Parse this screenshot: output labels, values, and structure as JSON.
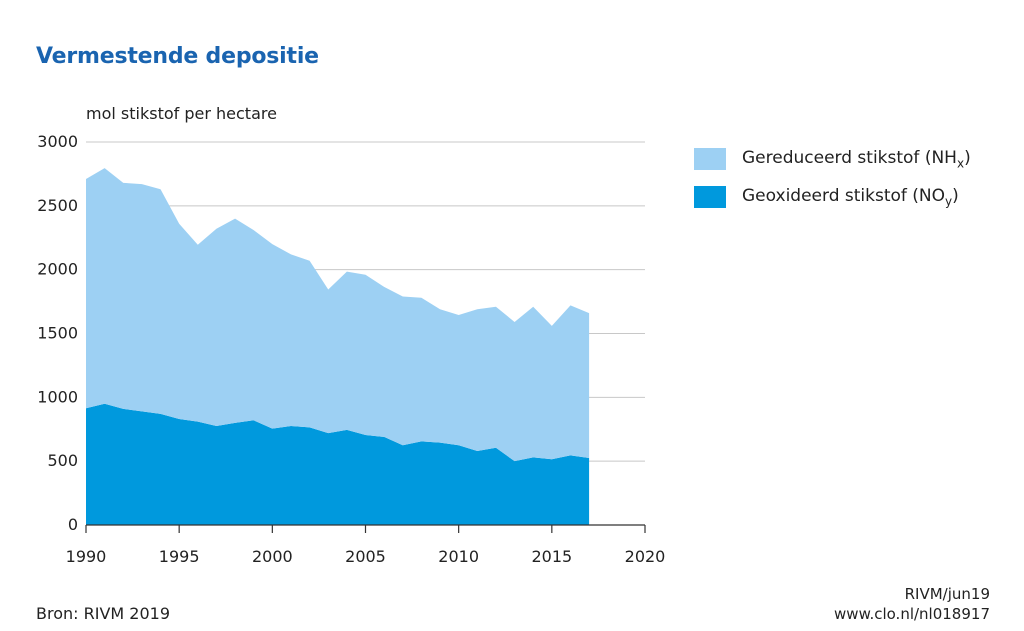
{
  "chart_data": {
    "type": "area",
    "title": "Vermestende depositie",
    "ylabel": "mol stikstof per hectare",
    "xlabel": "",
    "xlim": [
      1990,
      2020
    ],
    "ylim": [
      0,
      3000
    ],
    "x_ticks": [
      1990,
      1995,
      2000,
      2005,
      2010,
      2015,
      2020
    ],
    "y_ticks": [
      0,
      500,
      1000,
      1500,
      2000,
      2500,
      3000
    ],
    "grid": true,
    "legend_position": "right",
    "stacked": true,
    "x": [
      1990,
      1991,
      1992,
      1993,
      1994,
      1995,
      1996,
      1997,
      1998,
      1999,
      2000,
      2001,
      2002,
      2003,
      2004,
      2005,
      2006,
      2007,
      2008,
      2009,
      2010,
      2011,
      2012,
      2013,
      2014,
      2015,
      2016,
      2017
    ],
    "series": [
      {
        "name": "Geoxideerd stikstof (NO",
        "name_sub": "y",
        "name_suffix": ")",
        "color": "#0099dd",
        "values": [
          915,
          950,
          910,
          890,
          870,
          830,
          810,
          775,
          800,
          820,
          755,
          775,
          765,
          720,
          745,
          705,
          690,
          625,
          655,
          645,
          625,
          580,
          605,
          500,
          530,
          515,
          545,
          525
        ]
      },
      {
        "name": "Gereduceerd stikstof (NH",
        "name_sub": "x",
        "name_suffix": ")",
        "color": "#9dd0f3",
        "values": [
          1795,
          1845,
          1770,
          1780,
          1760,
          1530,
          1385,
          1545,
          1600,
          1490,
          1445,
          1345,
          1305,
          1125,
          1240,
          1255,
          1175,
          1165,
          1125,
          1045,
          1020,
          1110,
          1105,
          1090,
          1180,
          1045,
          1175,
          1135
        ]
      }
    ]
  },
  "footer": {
    "source": "Bron: RIVM 2019",
    "credit_line1": "RIVM/jun19",
    "credit_line2": "www.clo.nl/nl018917"
  }
}
